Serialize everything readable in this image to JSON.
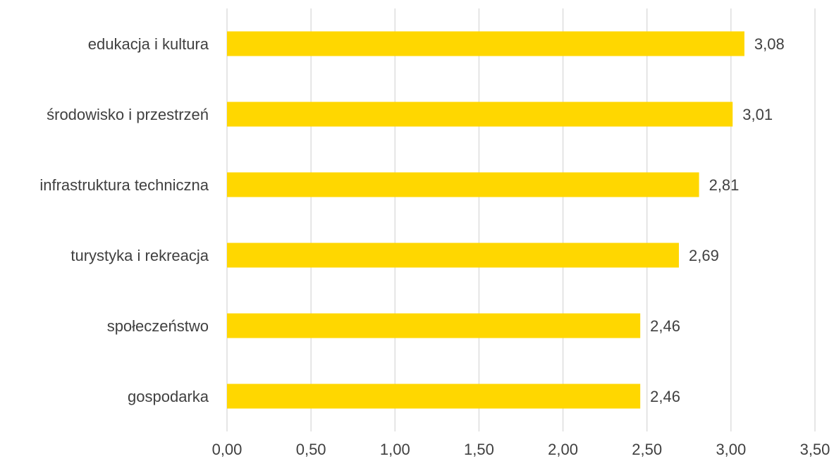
{
  "chart_data": {
    "type": "bar",
    "orientation": "horizontal",
    "categories": [
      "edukacja i kultura",
      "środowisko i przestrzeń",
      "infrastruktura techniczna",
      "turystyka i rekreacja",
      "społeczeństwo",
      "gospodarka"
    ],
    "values": [
      3.08,
      3.01,
      2.81,
      2.69,
      2.46,
      2.46
    ],
    "value_labels": [
      "3,08",
      "3,01",
      "2,81",
      "2,69",
      "2,46",
      "2,46"
    ],
    "x_ticks": [
      "0,00",
      "0,50",
      "1,00",
      "1,50",
      "2,00",
      "2,50",
      "3,00",
      "3,50"
    ],
    "x_tick_values": [
      0,
      0.5,
      1,
      1.5,
      2,
      2.5,
      3,
      3.5
    ],
    "xlim": [
      0,
      3.5
    ],
    "title": "",
    "xlabel": "",
    "ylabel": "",
    "grid": "vertical",
    "legend": "none",
    "colors": {
      "bar": "#FFD700",
      "grid": "#D9D9D9",
      "text": "#404040"
    }
  }
}
